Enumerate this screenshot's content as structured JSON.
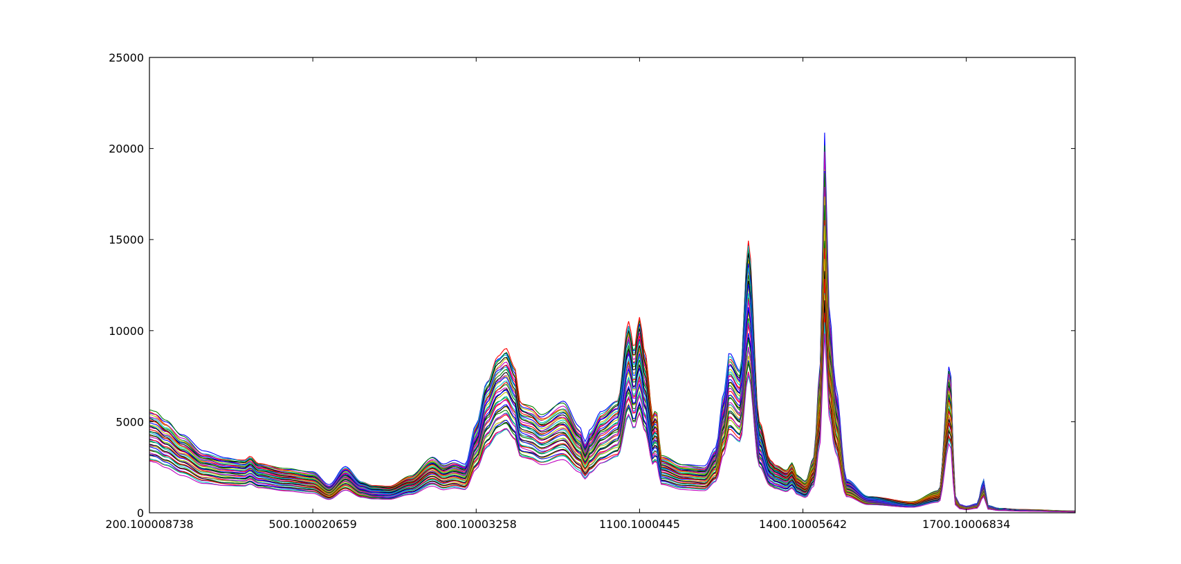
{
  "chart_data": {
    "type": "line",
    "title": "",
    "xlabel": "",
    "ylabel": "",
    "xlim": [
      200.100008738,
      1900
    ],
    "ylim": [
      0,
      25000
    ],
    "grid": false,
    "legend": "none",
    "x_ticks": [
      200.100008738,
      500.100020659,
      800.10003258,
      1100.1000445,
      1400.10005642,
      1700.10006834
    ],
    "x_tick_labels": [
      "200.100008738",
      "500.100020659",
      "800.10003258",
      "1100.1000445",
      "1400.10005642",
      "1700.10006834"
    ],
    "y_ticks": [
      0,
      5000,
      10000,
      15000,
      20000,
      25000
    ],
    "y_tick_labels": [
      "0",
      "5000",
      "10000",
      "15000",
      "20000",
      "25000"
    ],
    "series_count": 40,
    "series_scale_range": [
      0.5,
      1.0
    ],
    "series_colors": [
      "#0000ff",
      "#008000",
      "#ff0000",
      "#00bfbf",
      "#bf00bf",
      "#bfbf00",
      "#000000"
    ],
    "profile_x": [
      200,
      210,
      230,
      260,
      300,
      340,
      375,
      385,
      400,
      450,
      500,
      530,
      560,
      590,
      610,
      640,
      680,
      720,
      740,
      760,
      780,
      800,
      820,
      840,
      855,
      870,
      882,
      892,
      900,
      920,
      960,
      990,
      1000,
      1010,
      1030,
      1060,
      1080,
      1090,
      1100,
      1110,
      1125,
      1130,
      1140,
      1180,
      1220,
      1240,
      1255,
      1265,
      1285,
      1300,
      1320,
      1340,
      1350,
      1370,
      1380,
      1390,
      1405,
      1420,
      1432,
      1440,
      1448,
      1460,
      1480,
      1520,
      1600,
      1650,
      1670,
      1680,
      1688,
      1700,
      1720,
      1732,
      1740,
      1760,
      1800,
      1900
    ],
    "profile_y": [
      5600,
      5500,
      5000,
      4200,
      3300,
      3000,
      2900,
      3100,
      2700,
      2400,
      2200,
      1500,
      2500,
      1700,
      1500,
      1450,
      2000,
      3000,
      2600,
      2800,
      2600,
      4800,
      7200,
      8600,
      9000,
      8000,
      6000,
      5900,
      5800,
      5300,
      6000,
      4600,
      3800,
      4500,
      5500,
      6200,
      10500,
      9000,
      10700,
      8800,
      5200,
      5700,
      3100,
      2600,
      2500,
      3500,
      6500,
      8700,
      7800,
      15000,
      5000,
      2900,
      2600,
      2300,
      2700,
      2000,
      1700,
      3000,
      8000,
      20300,
      11000,
      6800,
      1800,
      900,
      600,
      1200,
      8000,
      900,
      450,
      350,
      500,
      1800,
      400,
      250,
      180,
      100
    ]
  }
}
